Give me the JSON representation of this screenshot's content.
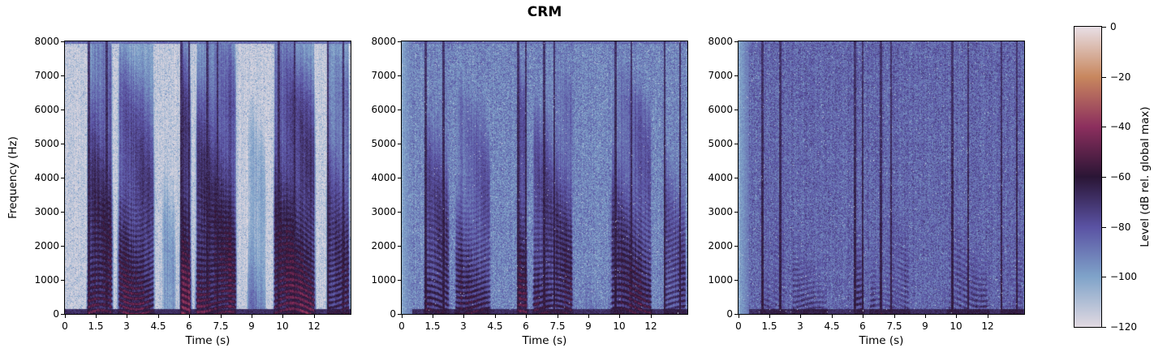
{
  "title": "CRM",
  "axes": {
    "xlabel": "Time (s)",
    "ylabel": "Frequency (Hz)",
    "xtick_labels": [
      "0",
      "1.5",
      "3",
      "4.5",
      "6",
      "7.5",
      "9",
      "10",
      "12"
    ],
    "ytick_labels": [
      "0",
      "1000",
      "2000",
      "3000",
      "4000",
      "5000",
      "6000",
      "7000",
      "8000"
    ]
  },
  "colorbar": {
    "label": "Level (dB rel. global max)",
    "tick_labels": [
      "0",
      "−20",
      "−40",
      "−60",
      "−80",
      "−100",
      "−120"
    ],
    "gradient": [
      {
        "v": 0.0,
        "hex": "#e1d9e1"
      },
      {
        "v": 0.1667,
        "hex": "#7fa3c9"
      },
      {
        "v": 0.3333,
        "hex": "#5a52a3"
      },
      {
        "v": 0.5,
        "hex": "#2a1535"
      },
      {
        "v": 0.6667,
        "hex": "#8c2f5e"
      },
      {
        "v": 0.8333,
        "hex": "#c8875e"
      },
      {
        "v": 1.0,
        "hex": "#e8dfe6"
      }
    ]
  },
  "chart_data": {
    "type": "heatmap",
    "title": "CRM",
    "subplots": 3,
    "xlabel": "Time (s)",
    "ylabel": "Frequency (Hz)",
    "x_range_s": [
      0,
      13.75
    ],
    "xticks": [
      0,
      1.5,
      3,
      4.5,
      6,
      7.5,
      9,
      10,
      12
    ],
    "y_range_hz": [
      0,
      8000
    ],
    "yticks": [
      0,
      1000,
      2000,
      3000,
      4000,
      5000,
      6000,
      7000,
      8000
    ],
    "level_range_db": [
      -120,
      0
    ],
    "colorbar_ticks_db": [
      0,
      -20,
      -40,
      -60,
      -80,
      -100,
      -120
    ],
    "colormap": "twilight",
    "legend": "none",
    "grid": false,
    "speech_segments_s": [
      [
        1.02,
        2.35,
        1.0
      ],
      [
        2.5,
        4.35,
        0.92
      ],
      [
        4.65,
        5.35,
        0.3
      ],
      [
        5.5,
        6.12,
        1.08
      ],
      [
        6.25,
        8.3,
        1.0
      ],
      [
        8.75,
        9.7,
        0.38
      ],
      [
        10.0,
        12.1,
        1.0
      ],
      [
        12.55,
        13.75,
        0.85
      ]
    ],
    "dark_streaks_s": [
      1.16,
      2.02,
      5.6,
      5.97,
      6.85,
      7.35,
      10.3,
      11.05,
      12.65,
      13.4
    ],
    "panels": [
      {
        "position": "left",
        "description": "Clean speech spectrogram: light (≈−115 dB) background with dark speech utterance bands and low-frequency harmonic striations; dark band at 0 Hz",
        "noise_floor_db": -114,
        "noise_sigma_db": 5,
        "speech_gain": 1.0,
        "left_light_strip": false,
        "salt_specks": false,
        "blue_speckle": true,
        "seed": 101
      },
      {
        "position": "middle",
        "description": "Speech in noise: blue noise floor ≈−93 dB, speech bands partially masked but striations still visible",
        "noise_floor_db": -93,
        "noise_sigma_db": 8,
        "speech_gain": 0.85,
        "left_light_strip": true,
        "salt_specks": true,
        "blue_speckle": false,
        "seed": 202
      },
      {
        "position": "right",
        "description": "Speech in heavier noise: purple noise floor ≈−85 dB, speech mostly masked; thin dark vertical streaks remain",
        "noise_floor_db": -85,
        "noise_sigma_db": 8,
        "speech_gain": 0.55,
        "left_light_strip": true,
        "salt_specks": true,
        "blue_speckle": false,
        "seed": 303
      }
    ]
  }
}
